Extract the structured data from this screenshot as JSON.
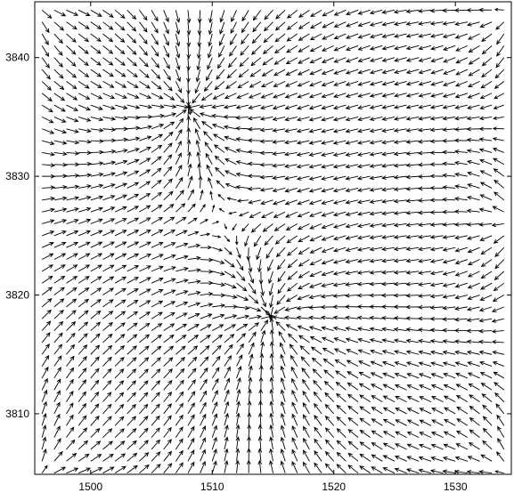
{
  "colors": {
    "arrow": "#000000",
    "axis": "#000000",
    "background": "#ffffff"
  },
  "chart_data": {
    "type": "quiver",
    "title": "",
    "xlabel": "",
    "ylabel": "",
    "xlim": [
      1495.4,
      1534.6
    ],
    "ylim": [
      3804.9,
      3844.7
    ],
    "grid": false,
    "legend": "none",
    "x_ticks": [
      1500,
      1510,
      1520,
      1530
    ],
    "x_tick_labels": [
      "1500",
      "1510",
      "1520",
      "1530"
    ],
    "y_ticks": [
      3810,
      3820,
      3830,
      3840
    ],
    "y_tick_labels": [
      "3810",
      "3820",
      "3830",
      "3840"
    ],
    "field": {
      "x_start": 1496,
      "x_step": 1,
      "x_count": 39,
      "y_start": 3805,
      "y_step": 1,
      "y_count": 40,
      "description_points": {
        "sinks": [
          [
            1508,
            3836
          ],
          [
            1515,
            3818
          ]
        ],
        "sources": [
          [
            1496,
            3844
          ],
          [
            1534,
            3844
          ],
          [
            1496,
            3805
          ],
          [
            1534,
            3805
          ],
          [
            1534,
            3826
          ]
        ]
      }
    }
  }
}
